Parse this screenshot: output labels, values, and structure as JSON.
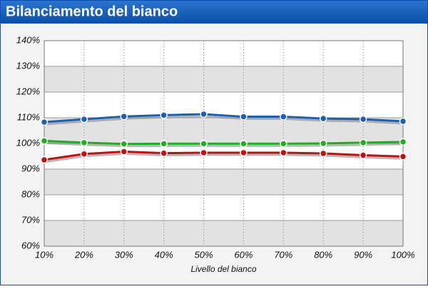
{
  "header": {
    "title": "Bilanciamento del bianco"
  },
  "chart_data": {
    "type": "line",
    "x_label": "Livello del bianco",
    "categories": [
      "10%",
      "20%",
      "30%",
      "40%",
      "50%",
      "60%",
      "70%",
      "80%",
      "90%",
      "100%"
    ],
    "series": [
      {
        "color": "#1f5fb0",
        "values": [
          108.3,
          109.4,
          110.5,
          111.0,
          111.4,
          110.4,
          110.4,
          109.7,
          109.4,
          108.6
        ]
      },
      {
        "color": "#1fae1f",
        "values": [
          101.0,
          100.3,
          99.8,
          99.9,
          99.9,
          99.9,
          99.9,
          100.0,
          100.3,
          100.6
        ]
      },
      {
        "color": "#c01010",
        "values": [
          93.6,
          95.9,
          96.8,
          96.2,
          96.4,
          96.4,
          96.4,
          96.1,
          95.4,
          94.9
        ]
      }
    ],
    "ylim": [
      60,
      140
    ],
    "yticks": [
      {
        "value": 60,
        "label": "60%"
      },
      {
        "value": 70,
        "label": "70%"
      },
      {
        "value": 80,
        "label": "80%"
      },
      {
        "value": 90,
        "label": "90%"
      },
      {
        "value": 100,
        "label": "100%"
      },
      {
        "value": 110,
        "label": "110%"
      },
      {
        "value": 120,
        "label": "120%"
      },
      {
        "value": 130,
        "label": "130%"
      },
      {
        "value": 140,
        "label": "140%"
      }
    ],
    "grid": true
  }
}
